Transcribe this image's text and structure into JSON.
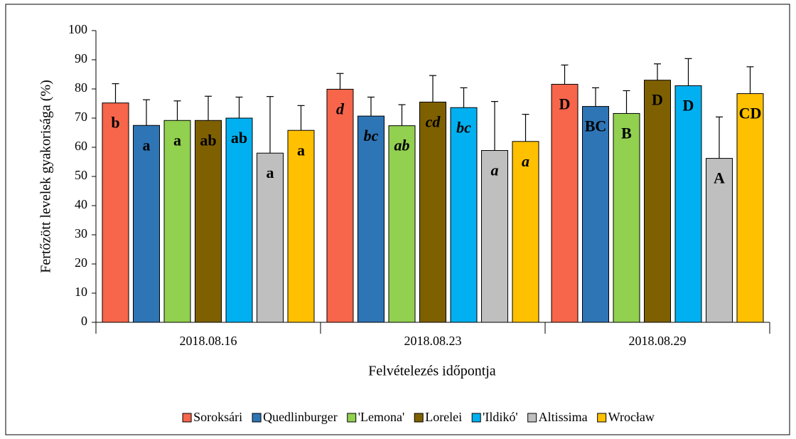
{
  "chart_data": {
    "type": "bar",
    "y_label": "Fertőzött levelek gyakorisága (%)",
    "x_label": "Felvételezés időpontja",
    "categories": [
      "2018.08.16",
      "2018.08.23",
      "2018.08.29"
    ],
    "label_font_style": [
      "normal",
      "italic",
      "normal"
    ],
    "ylim": [
      0,
      100
    ],
    "yticks": [
      0,
      10,
      20,
      30,
      40,
      50,
      60,
      70,
      80,
      90,
      100
    ],
    "legend": "bottom",
    "series": [
      {
        "name": "Soroksári",
        "color": "#f7654a",
        "values": [
          75.2,
          79.9,
          81.6
        ],
        "errors": [
          6.6,
          5.4,
          6.6
        ],
        "labels": [
          "b",
          "d",
          "D"
        ]
      },
      {
        "name": "Quedlinburger",
        "color": "#2e75b6",
        "values": [
          67.5,
          70.7,
          74.0
        ],
        "errors": [
          8.8,
          6.5,
          6.4
        ],
        "labels": [
          "a",
          "bc",
          "BC"
        ]
      },
      {
        "name": "'Lemona'",
        "color": "#92d050",
        "values": [
          69.2,
          67.4,
          71.6
        ],
        "errors": [
          6.7,
          7.2,
          7.8
        ],
        "labels": [
          "a",
          "ab",
          "B"
        ]
      },
      {
        "name": "Lorelei",
        "color": "#7f6000",
        "values": [
          69.2,
          75.5,
          83.0
        ],
        "errors": [
          8.3,
          9.1,
          5.6
        ],
        "labels": [
          "ab",
          "cd",
          "D"
        ]
      },
      {
        "name": "'Ildikó'",
        "color": "#00b0f0",
        "values": [
          70.0,
          73.6,
          81.1
        ],
        "errors": [
          7.2,
          6.8,
          9.3
        ],
        "labels": [
          "ab",
          "bc",
          "D"
        ]
      },
      {
        "name": "Altissima",
        "color": "#bfbfbf",
        "values": [
          58.0,
          58.9,
          56.2
        ],
        "errors": [
          19.4,
          16.8,
          14.2
        ],
        "labels": [
          "a",
          "a",
          "A"
        ]
      },
      {
        "name": "Wrocław",
        "color": "#ffc000",
        "values": [
          65.8,
          62.0,
          78.4
        ],
        "errors": [
          8.5,
          9.3,
          9.2
        ],
        "labels": [
          "a",
          "a",
          "CD"
        ]
      }
    ]
  }
}
